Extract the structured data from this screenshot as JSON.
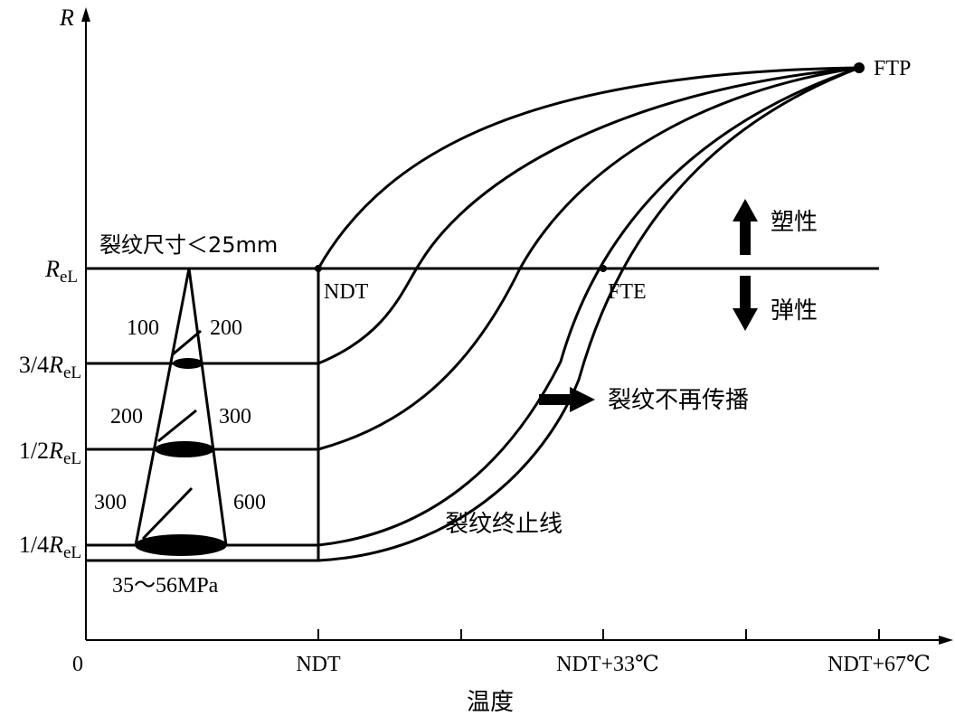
{
  "axes": {
    "y_label": "R",
    "x_label": "温度",
    "origin_label": "0",
    "x_ticks": [
      "NDT",
      "NDT+33℃",
      "NDT+67℃"
    ]
  },
  "stress_levels": [
    {
      "label_main": "R",
      "label_sub": "eL",
      "label_prefix": ""
    },
    {
      "label_main": "R",
      "label_sub": "eL",
      "label_prefix": "3/4"
    },
    {
      "label_main": "R",
      "label_sub": "eL",
      "label_prefix": "1/2"
    },
    {
      "label_main": "R",
      "label_sub": "eL",
      "label_prefix": "1/4"
    }
  ],
  "points": {
    "ndt": "NDT",
    "fte": "FTE",
    "ftp": "FTP"
  },
  "annotations": {
    "crack_size": "裂纹尺寸＜25mm",
    "plastic": "塑性",
    "elastic": "弹性",
    "no_propagation": "裂纹不再传播",
    "arrest_line": "裂纹终止线",
    "stress_range": "35～56MPa"
  },
  "cone_labels": {
    "left": [
      "100",
      "200",
      "300"
    ],
    "right": [
      "200",
      "300",
      "600"
    ]
  }
}
